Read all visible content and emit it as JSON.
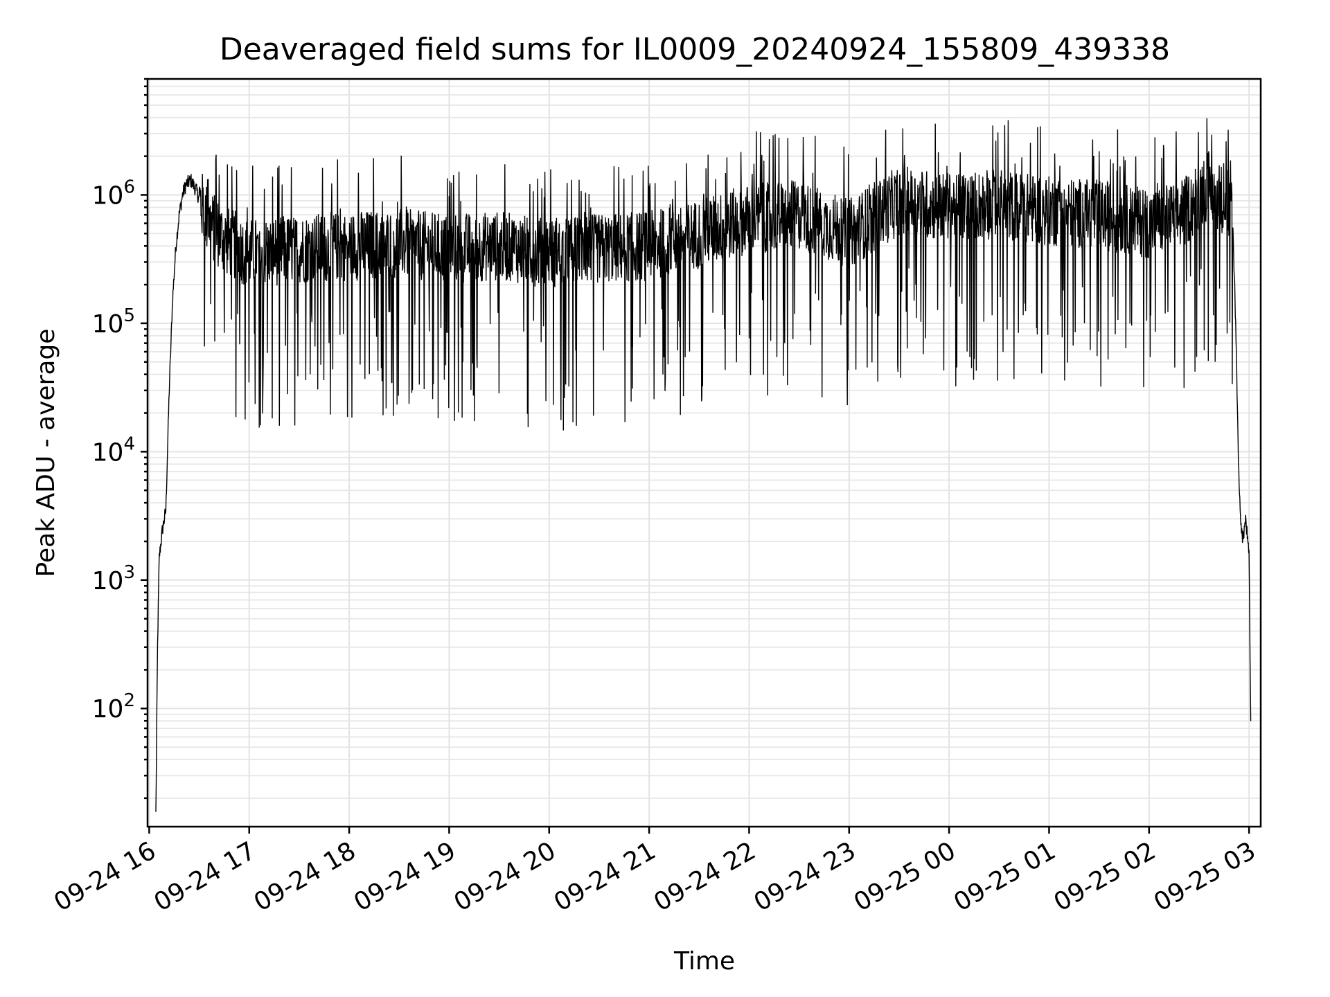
{
  "chart_data": {
    "type": "line",
    "title": "Deaveraged field sums for IL0009_20240924_155809_439338",
    "xlabel": "Time",
    "ylabel": "Peak ADU - average",
    "yscale": "log",
    "ylim": [
      12,
      8000000
    ],
    "xlim": [
      "2024-09-24 15:59",
      "2024-09-25 03:07"
    ],
    "grid": "both (major and minor)",
    "legend": "none",
    "line_color": "#000000",
    "x_tick_labels": [
      "09-24 16",
      "09-24 17",
      "09-24 18",
      "09-24 19",
      "09-24 20",
      "09-24 21",
      "09-24 22",
      "09-24 23",
      "09-25 00",
      "09-25 01",
      "09-25 02",
      "09-25 03"
    ],
    "y_tick_labels": [
      {
        "value": 100,
        "base": "10",
        "exp": "2"
      },
      {
        "value": 1000,
        "base": "10",
        "exp": "3"
      },
      {
        "value": 10000,
        "base": "10",
        "exp": "4"
      },
      {
        "value": 100000,
        "base": "10",
        "exp": "5"
      },
      {
        "value": 1000000,
        "base": "10",
        "exp": "6"
      }
    ],
    "series": [
      {
        "x": [
          "2024-09-24 16:04",
          "2024-09-24 16:05",
          "2024-09-24 16:06",
          "2024-09-24 16:08",
          "2024-09-24 16:10",
          "2024-09-24 16:12",
          "2024-09-24 16:14",
          "2024-09-24 16:16",
          "2024-09-24 16:18",
          "2024-09-24 16:20",
          "2024-09-24 16:22",
          "2024-09-24 16:25",
          "2024-09-24 16:28",
          "2024-09-24 16:32",
          "2024-09-24 16:36",
          "2024-09-24 16:45",
          "2024-09-24 17:00",
          "2024-09-24 17:30",
          "2024-09-24 18:00",
          "2024-09-24 18:30",
          "2024-09-24 19:00",
          "2024-09-24 19:30",
          "2024-09-24 20:00",
          "2024-09-24 20:30",
          "2024-09-24 21:00",
          "2024-09-24 21:30",
          "2024-09-24 22:00",
          "2024-09-24 22:30",
          "2024-09-24 23:00",
          "2024-09-24 23:30",
          "2024-09-25 00:00",
          "2024-09-25 00:30",
          "2024-09-25 01:00",
          "2024-09-25 01:30",
          "2024-09-25 02:00",
          "2024-09-25 02:20",
          "2024-09-25 02:35",
          "2024-09-25 02:45",
          "2024-09-25 02:50",
          "2024-09-25 02:52",
          "2024-09-25 02:54",
          "2024-09-25 02:56",
          "2024-09-25 02:58",
          "2024-09-25 03:00",
          "2024-09-25 03:01"
        ],
        "y": [
          15,
          300,
          1500,
          2500,
          3500,
          30000,
          150000,
          400000,
          700000,
          1000000,
          1200000,
          1300000,
          1100000,
          800000,
          600000,
          450000,
          350000,
          380000,
          400000,
          420000,
          380000,
          400000,
          350000,
          380000,
          400000,
          500000,
          650000,
          700000,
          500000,
          900000,
          800000,
          850000,
          750000,
          700000,
          600000,
          700000,
          1200000,
          900000,
          700000,
          100000,
          5000,
          2000,
          3000,
          1500,
          80
        ]
      }
    ]
  }
}
